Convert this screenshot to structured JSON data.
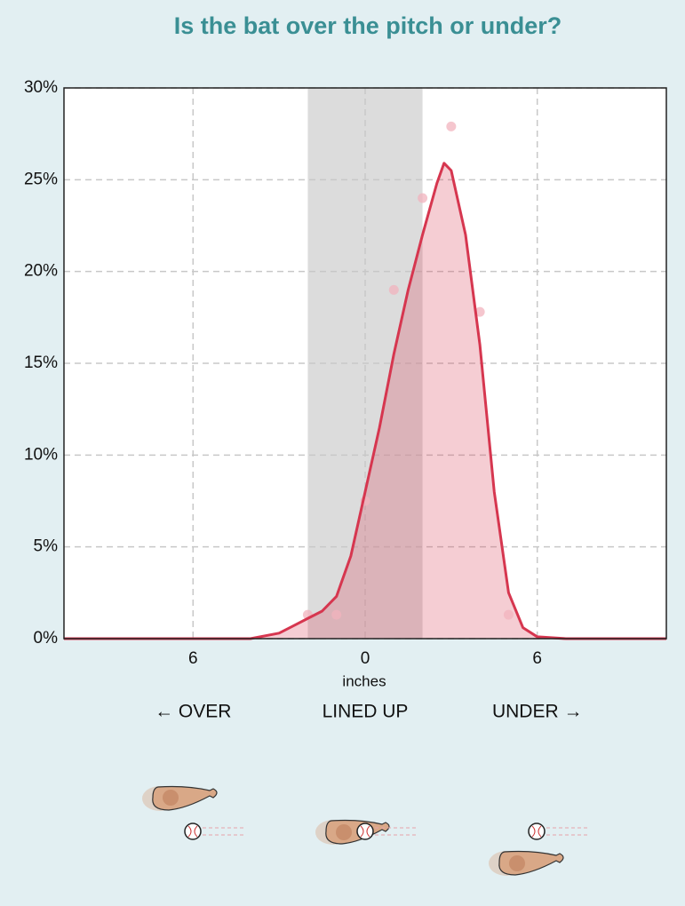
{
  "chart_data": {
    "type": "area",
    "title": "Is the bat over the pitch or under?",
    "x_label": "inches",
    "xlim": [
      -10.5,
      10.5
    ],
    "ylim": [
      0,
      30
    ],
    "xticks": [
      {
        "value": -6,
        "label": "6"
      },
      0,
      6
    ],
    "yticks": [
      {
        "value": 0,
        "label": "0%"
      },
      {
        "value": 5,
        "label": "5%"
      },
      {
        "value": 10,
        "label": "10%"
      },
      {
        "value": 15,
        "label": "15%"
      },
      {
        "value": 20,
        "label": "20%"
      },
      {
        "value": 25,
        "label": "25%"
      },
      {
        "value": 30,
        "label": "30%"
      }
    ],
    "grid": true,
    "band": {
      "x": [
        -2,
        2
      ],
      "color": "#dcdcdc"
    },
    "x": [
      -10.5,
      -4,
      -3,
      -2.5,
      -2,
      -1.5,
      -1,
      -0.5,
      0,
      0.5,
      1,
      1.5,
      2,
      2.5,
      2.75,
      3,
      3.5,
      4,
      4.5,
      5,
      5.5,
      6,
      7,
      10.5
    ],
    "series": [
      {
        "color": "#d6364f",
        "values": [
          0,
          0,
          0.3,
          0.7,
          1.1,
          1.5,
          2.3,
          4.5,
          8,
          11.5,
          15.5,
          19,
          22,
          24.8,
          25.9,
          25.5,
          22,
          16,
          8,
          2.5,
          0.6,
          0.1,
          0,
          0
        ]
      }
    ],
    "points": {
      "color": "#f2b3bd",
      "x": [
        -2,
        -1,
        0,
        1,
        2,
        3,
        4,
        5
      ],
      "values": [
        1.3,
        1.3,
        7.5,
        19,
        24,
        27.9,
        17.8,
        1.3
      ]
    },
    "annotations": [
      "← OVER",
      "LINED UP",
      "UNDER →"
    ]
  }
}
